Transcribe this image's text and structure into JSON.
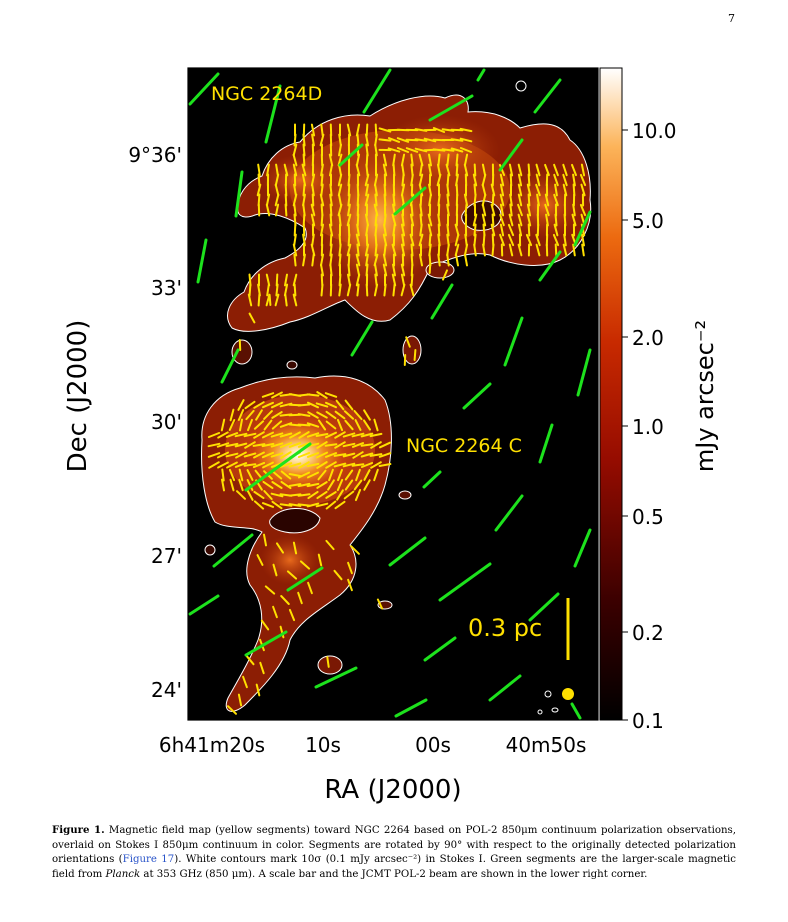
{
  "page_number": "7",
  "figure": {
    "ticks_dec": [
      "9°36'",
      "33'",
      "30'",
      "27'",
      "24'"
    ],
    "ticks_ra": [
      "6h41m20s",
      "10s",
      "00s",
      "40m50s"
    ],
    "xlabel": "RA (J2000)",
    "ylabel": "Dec (J2000)",
    "colorbar_label": "mJy arcsec⁻²",
    "colorbar_ticks": [
      "10.0",
      "5.0",
      "2.0",
      "1.0",
      "0.5",
      "0.2",
      "0.1"
    ],
    "label_d": "NGC 2264D",
    "label_c": "NGC 2264 C",
    "scalebar_label": "0.3 pc",
    "colors": {
      "polarization_segments": "#ffe000",
      "planck_segments": "#1de21d",
      "contours": "#ffffff",
      "background": "#000000"
    }
  },
  "caption": {
    "label": "Figure 1.",
    "part1": "Magnetic field map (yellow segments) toward NGC 2264 based on POL-2 850μm continuum polarization observations, overlaid on Stokes I 850μm continuum in color. Segments are rotated by 90° with respect to the originally detected polarization orientations (",
    "ref": "Figure 17",
    "part2": "). White contours mark 10σ (0.1 mJy arcsec⁻²) in Stokes I. Green segments are the larger-scale magnetic field from ",
    "planck": "Planck",
    "part3": " at 353 GHz (850 μm). A scale bar and the JCMT POL-2 beam are shown in the lower right corner."
  }
}
